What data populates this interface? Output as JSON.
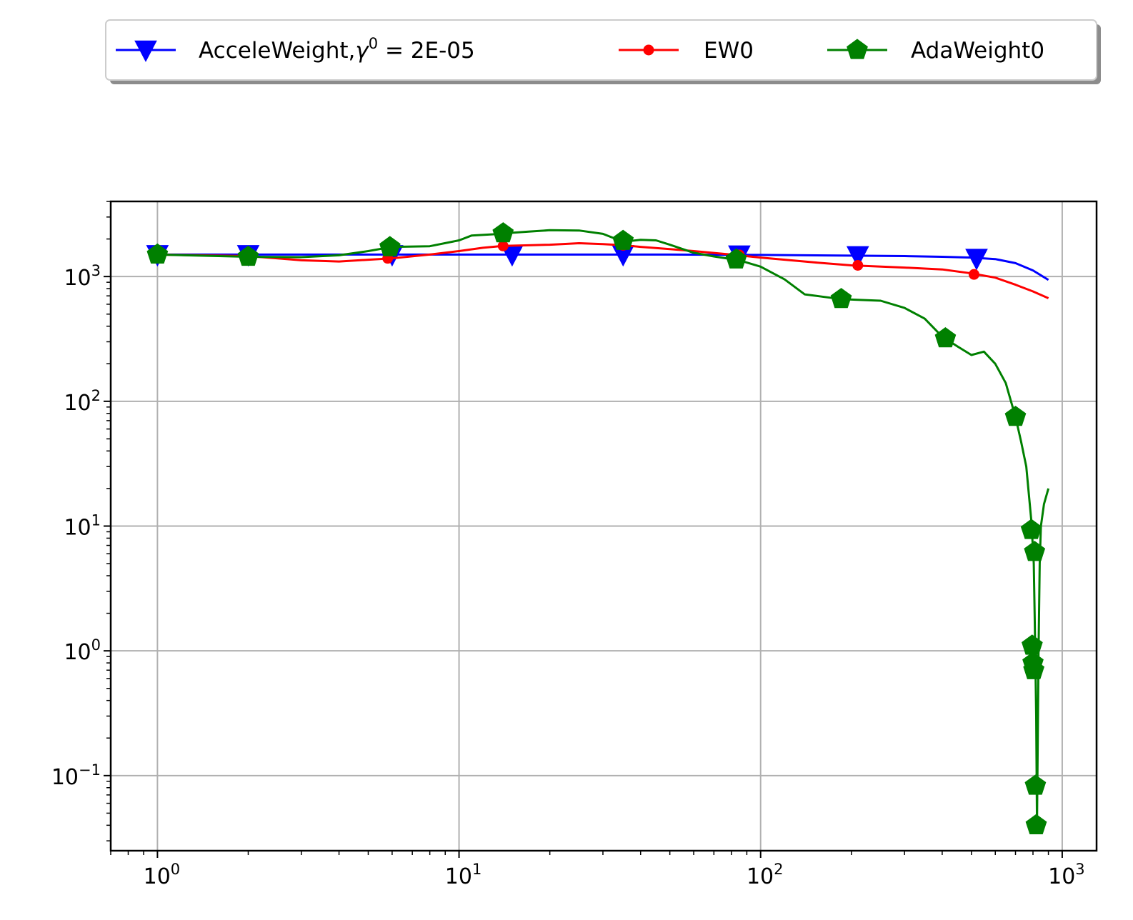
{
  "chart_data": {
    "type": "line",
    "xscale": "log",
    "yscale": "log",
    "xlim": [
      0.7,
      1300
    ],
    "ylim": [
      0.025,
      4000
    ],
    "grid": true,
    "legend_position": "top, outside plot, single row",
    "x_ticks": [
      {
        "value": 1,
        "base": "10",
        "exp": "0"
      },
      {
        "value": 10,
        "base": "10",
        "exp": "1"
      },
      {
        "value": 100,
        "base": "10",
        "exp": "2"
      },
      {
        "value": 1000,
        "base": "10",
        "exp": "3"
      }
    ],
    "y_ticks": [
      {
        "value": 0.1,
        "base": "10",
        "exp": "−1"
      },
      {
        "value": 1,
        "base": "10",
        "exp": "0"
      },
      {
        "value": 10,
        "base": "10",
        "exp": "1"
      },
      {
        "value": 100,
        "base": "10",
        "exp": "2"
      },
      {
        "value": 1000,
        "base": "10",
        "exp": "3"
      }
    ],
    "series": [
      {
        "name": "AcceleWeight,γ⁰ = 2E-05",
        "legend_prefix": "AcceleWeight,",
        "legend_gamma": "γ",
        "legend_sup": "0",
        "legend_suffix": " = 2E-05",
        "color": "#0000ff",
        "marker": "triangle-down",
        "line": [
          [
            1,
            1500
          ],
          [
            2,
            1500
          ],
          [
            5,
            1500
          ],
          [
            10,
            1500
          ],
          [
            20,
            1500
          ],
          [
            50,
            1500
          ],
          [
            100,
            1490
          ],
          [
            200,
            1470
          ],
          [
            300,
            1460
          ],
          [
            400,
            1440
          ],
          [
            500,
            1420
          ],
          [
            600,
            1380
          ],
          [
            700,
            1280
          ],
          [
            800,
            1120
          ],
          [
            900,
            940
          ]
        ],
        "markers": [
          [
            1,
            1500
          ],
          [
            2,
            1500
          ],
          [
            6,
            1500
          ],
          [
            15,
            1500
          ],
          [
            35,
            1500
          ],
          [
            85,
            1490
          ],
          [
            210,
            1470
          ],
          [
            520,
            1400
          ]
        ]
      },
      {
        "name": "EW0",
        "color": "#ff0000",
        "marker": "point",
        "line": [
          [
            1,
            1500
          ],
          [
            2,
            1460
          ],
          [
            3,
            1350
          ],
          [
            4,
            1320
          ],
          [
            6,
            1400
          ],
          [
            8,
            1500
          ],
          [
            10,
            1600
          ],
          [
            12,
            1700
          ],
          [
            14,
            1760
          ],
          [
            17,
            1780
          ],
          [
            20,
            1800
          ],
          [
            25,
            1850
          ],
          [
            30,
            1820
          ],
          [
            35,
            1780
          ],
          [
            40,
            1730
          ],
          [
            50,
            1660
          ],
          [
            60,
            1600
          ],
          [
            80,
            1500
          ],
          [
            100,
            1420
          ],
          [
            150,
            1300
          ],
          [
            200,
            1230
          ],
          [
            300,
            1180
          ],
          [
            400,
            1140
          ],
          [
            500,
            1060
          ],
          [
            600,
            980
          ],
          [
            700,
            860
          ],
          [
            800,
            760
          ],
          [
            900,
            670
          ]
        ],
        "markers": [
          [
            1,
            1500
          ],
          [
            2,
            1460
          ],
          [
            5.8,
            1400
          ],
          [
            14,
            1760
          ],
          [
            35,
            1780
          ],
          [
            85,
            1490
          ],
          [
            210,
            1230
          ],
          [
            510,
            1040
          ]
        ]
      },
      {
        "name": "AdaWeight0",
        "color": "#008000",
        "marker": "pentagon",
        "line": [
          [
            1,
            1500
          ],
          [
            2,
            1440
          ],
          [
            3,
            1430
          ],
          [
            4,
            1480
          ],
          [
            5,
            1600
          ],
          [
            6,
            1730
          ],
          [
            8,
            1750
          ],
          [
            10,
            1950
          ],
          [
            11,
            2130
          ],
          [
            13,
            2180
          ],
          [
            14,
            2220
          ],
          [
            17,
            2290
          ],
          [
            20,
            2350
          ],
          [
            25,
            2340
          ],
          [
            30,
            2200
          ],
          [
            35,
            1900
          ],
          [
            40,
            1970
          ],
          [
            45,
            1950
          ],
          [
            50,
            1800
          ],
          [
            60,
            1550
          ],
          [
            70,
            1450
          ],
          [
            85,
            1350
          ],
          [
            100,
            1200
          ],
          [
            120,
            950
          ],
          [
            140,
            720
          ],
          [
            160,
            690
          ],
          [
            185,
            660
          ],
          [
            210,
            650
          ],
          [
            250,
            640
          ],
          [
            300,
            560
          ],
          [
            350,
            460
          ],
          [
            400,
            330
          ],
          [
            450,
            275
          ],
          [
            500,
            235
          ],
          [
            550,
            250
          ],
          [
            600,
            200
          ],
          [
            650,
            140
          ],
          [
            700,
            75
          ],
          [
            730,
            48
          ],
          [
            760,
            30
          ],
          [
            790,
            11
          ],
          [
            805,
            5
          ],
          [
            810,
            2
          ],
          [
            815,
            0.8
          ],
          [
            820,
            0.3
          ],
          [
            825,
            0.04
          ],
          [
            830,
            0.2
          ],
          [
            835,
            1
          ],
          [
            842,
            5
          ],
          [
            850,
            10
          ],
          [
            870,
            15
          ],
          [
            900,
            20
          ]
        ],
        "markers": [
          [
            1,
            1500
          ],
          [
            2,
            1440
          ],
          [
            5.9,
            1720
          ],
          [
            14,
            2220
          ],
          [
            35,
            1930
          ],
          [
            83,
            1370
          ],
          [
            185,
            660
          ],
          [
            410,
            320
          ],
          [
            700,
            75
          ],
          [
            790,
            9.3
          ],
          [
            795,
            1.1
          ],
          [
            800,
            0.8
          ],
          [
            805,
            0.7
          ],
          [
            810,
            6.2
          ],
          [
            815,
            0.083
          ],
          [
            820,
            0.04
          ]
        ]
      }
    ]
  }
}
